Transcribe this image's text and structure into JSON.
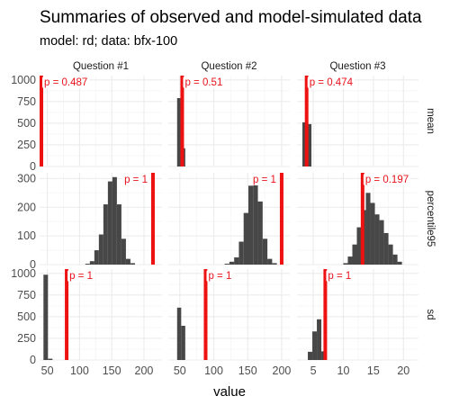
{
  "colors": {
    "panel": "#ffffff",
    "grid_major": "#ebebeb",
    "grid_minor": "#f5f5f5",
    "bar": "#474747",
    "observed": "#ee1111",
    "annotation_text": "#e8111a"
  },
  "chart_data": {
    "type": "bar",
    "title": "Summaries of observed and model-simulated data",
    "subtitle": "model: rd; data: bfx-100",
    "xlabel": "value",
    "ylabel": "",
    "legend": "none",
    "grid": true,
    "columns": [
      "Question #1",
      "Question #2",
      "Question #3"
    ],
    "rows": [
      "mean",
      "percentile95",
      "sd"
    ],
    "column_xlim": [
      [
        38,
        228
      ],
      [
        33,
        212
      ],
      [
        2.3,
        22.5
      ]
    ],
    "column_xticks": [
      [
        50,
        100,
        150,
        200
      ],
      [
        50,
        100,
        150,
        200
      ],
      [
        5,
        10,
        15,
        20
      ]
    ],
    "row_ylim": [
      [
        0,
        1050
      ],
      [
        0,
        320
      ],
      [
        0,
        1050
      ]
    ],
    "row_yticks": [
      [
        0,
        250,
        500,
        750,
        1000
      ],
      [
        0,
        100,
        200,
        300
      ],
      [
        0,
        250,
        500,
        750,
        1000
      ]
    ],
    "panels": [
      {
        "row": "mean",
        "column": "Question #1",
        "bin_width": 2,
        "bin_start": [
          40
        ],
        "counts": [
          1000
        ],
        "observed": 40.8,
        "p_label": "p = 0.487"
      },
      {
        "row": "mean",
        "column": "Question #2",
        "bin_width": 6,
        "bin_start": [
          46,
          52
        ],
        "counts": [
          790,
          210
        ],
        "observed": 53.5,
        "p_label": "p = 0.51"
      },
      {
        "row": "mean",
        "column": "Question #3",
        "bin_width": 0.75,
        "bin_start": [
          3.2,
          3.95
        ],
        "counts": [
          510,
          490
        ],
        "observed": 3.9,
        "p_label": "p = 0.474"
      },
      {
        "row": "percentile95",
        "column": "Question #1",
        "bin_width": 7,
        "bin_start": [
          109,
          116,
          123,
          130,
          137,
          144,
          151,
          158,
          165,
          172,
          179
        ],
        "counts": [
          3,
          12,
          50,
          105,
          210,
          290,
          305,
          210,
          90,
          20,
          5
        ],
        "observed": 214,
        "p_label": "p = 1"
      },
      {
        "row": "percentile95",
        "column": "Question #2",
        "bin_width": 7,
        "bin_start": [
          116,
          123,
          130,
          137,
          144,
          151,
          158,
          165,
          172,
          179,
          186
        ],
        "counts": [
          3,
          10,
          25,
          80,
          180,
          275,
          280,
          220,
          90,
          20,
          5
        ],
        "observed": 200,
        "p_label": "p = 1"
      },
      {
        "row": "percentile95",
        "column": "Question #3",
        "bin_width": 0.75,
        "bin_start": [
          10,
          10.75,
          11.5,
          12.25,
          13,
          13.75,
          14.5,
          15.25,
          16,
          16.75,
          17.5,
          18.25,
          19
        ],
        "counts": [
          5,
          28,
          70,
          130,
          190,
          250,
          215,
          175,
          155,
          110,
          70,
          35,
          10
        ],
        "observed": 13.2,
        "p_label": "p = 0.197"
      },
      {
        "row": "sd",
        "column": "Question #1",
        "bin_width": 7,
        "bin_start": [
          44,
          51
        ],
        "counts": [
          985,
          15
        ],
        "observed": 80,
        "p_label": "p = 1"
      },
      {
        "row": "sd",
        "column": "Question #2",
        "bin_width": 6,
        "bin_start": [
          46,
          52
        ],
        "counts": [
          605,
          395
        ],
        "observed": 88,
        "p_label": "p = 1"
      },
      {
        "row": "sd",
        "column": "Question #3",
        "bin_width": 0.75,
        "bin_start": [
          4.1,
          4.85,
          5.6,
          6.35
        ],
        "counts": [
          95,
          330,
          470,
          100
        ],
        "observed": 7.0,
        "p_label": "p = 1"
      }
    ]
  }
}
